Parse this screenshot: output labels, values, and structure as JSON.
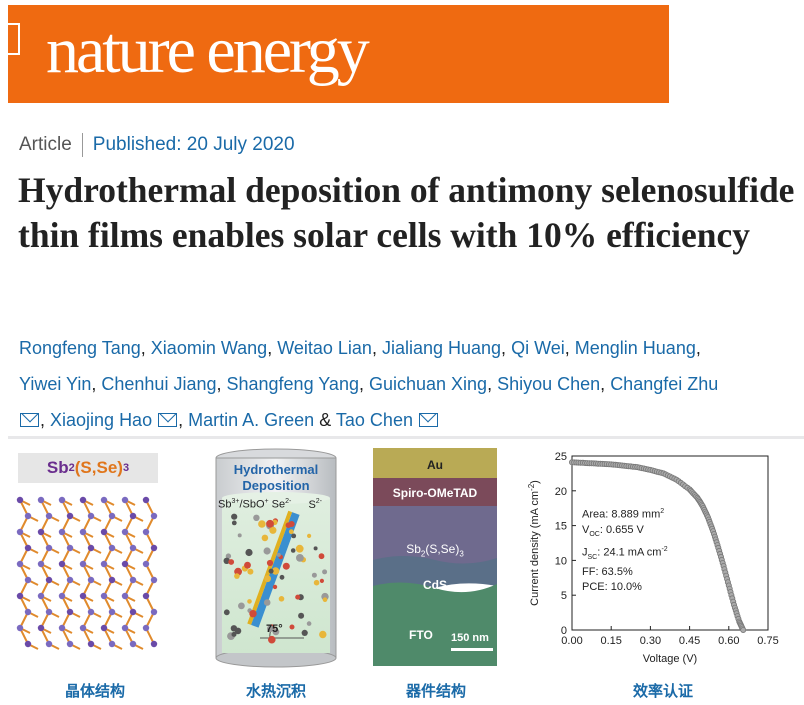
{
  "journal": {
    "name": "nature energy",
    "brand_color": "#ef6a11"
  },
  "meta": {
    "type": "Article",
    "published": "Published: 20 July 2020"
  },
  "title": "Hydrothermal deposition of antimony selenosulfide thin films enables solar cells with 10% efficiency",
  "authors": {
    "line1": [
      "Rongfeng Tang",
      "Xiaomin Wang",
      "Weitao Lian",
      "Jialiang Huang",
      "Qi Wei",
      "Menglin Huang"
    ],
    "line2": [
      "Yiwei Yin",
      "Chenhui Jiang",
      "Shangfeng Yang",
      "Guichuan Xing",
      "Shiyou Chen",
      "Changfei Zhu"
    ],
    "line3": {
      "a": "Xiaojing Hao",
      "b": "Martin A. Green",
      "amp": "&",
      "c": "Tao Chen"
    }
  },
  "figure": {
    "crystal": {
      "formula_main": "Sb",
      "formula_sub": "2",
      "formula_paren": "(S,Se)",
      "formula_sub2": "3",
      "caption": "晶体结构"
    },
    "hydrothermal": {
      "title1": "Hydrothermal",
      "title2": "Deposition",
      "species1": "Sb",
      "species1_sup": "3+",
      "species1b": "/SbO",
      "species1b_sup": "+",
      "species2": " Se",
      "species2_sup": "2-",
      "species3": "S",
      "species3_sup": "2-",
      "angle": "75°",
      "caption": "水热沉积"
    },
    "device": {
      "layer_au": "Au",
      "layer_spiro": "Spiro-OMeTAD",
      "layer_absorber": "Sb",
      "layer_absorber_sub": "2",
      "layer_absorber_rest": "(S,Se)",
      "layer_absorber_sub2": "3",
      "layer_cds": "CdS",
      "layer_fto": "FTO",
      "scale_bar": "150 nm",
      "caption": "器件结构"
    },
    "jv": {
      "caption": "效率认证"
    }
  },
  "chart_data": {
    "type": "line",
    "xlabel": "Voltage (V)",
    "ylabel": "Current density (mA cm",
    "ylabel_sup": "-2",
    "ylabel_end": ")",
    "xlim": [
      0.0,
      0.75
    ],
    "ylim": [
      0,
      25
    ],
    "xticks": [
      "0.00",
      "0.15",
      "0.30",
      "0.45",
      "0.60",
      "0.75"
    ],
    "yticks": [
      "0",
      "5",
      "10",
      "15",
      "20",
      "25"
    ],
    "x": [
      0.0,
      0.05,
      0.1,
      0.15,
      0.2,
      0.25,
      0.3,
      0.35,
      0.4,
      0.45,
      0.48,
      0.5,
      0.52,
      0.54,
      0.56,
      0.58,
      0.6,
      0.62,
      0.64,
      0.655
    ],
    "y": [
      24.1,
      24.0,
      23.9,
      23.8,
      23.6,
      23.4,
      23.0,
      22.5,
      21.6,
      20.2,
      19.0,
      17.8,
      16.2,
      14.2,
      11.8,
      9.2,
      6.4,
      3.6,
      1.2,
      0.0
    ],
    "annotations": {
      "area": "Area: 8.889 mm",
      "area_sup": "2",
      "voc": "V",
      "voc_sub": "OC",
      "voc_val": ":  0.655 V",
      "jsc": "J",
      "jsc_sub": "SC",
      "jsc_val": ":   24.1 mA cm",
      "jsc_sup": "-2",
      "ff": "FF:     63.5%",
      "pce": "PCE:  10.0%"
    },
    "marker_color": "#777777"
  }
}
